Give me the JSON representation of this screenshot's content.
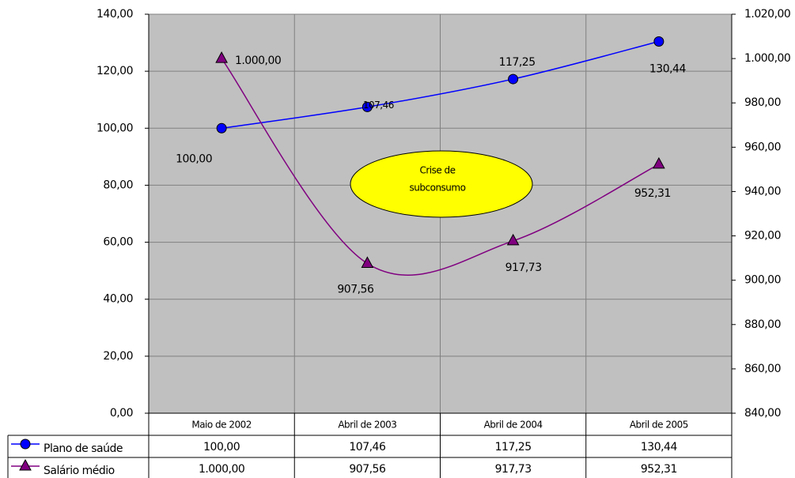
{
  "chart_data": {
    "type": "line",
    "categories": [
      "Maio de 2002",
      "Abril de 2003",
      "Abril de 2004",
      "Abril de 2005"
    ],
    "series": [
      {
        "name": "Plano de saúde",
        "color": "#0000ff",
        "label_color": "#1a1acc",
        "marker": "circle",
        "values": [
          100,
          107.46,
          117.25,
          130.44
        ],
        "value_labels": [
          "100,00",
          "107,46",
          "117,25",
          "130,44"
        ]
      },
      {
        "name": "Salário médio",
        "color": "#800080",
        "label_color": "#ff00ff",
        "marker": "triangle",
        "axis": "y2",
        "values": [
          1000,
          907.56,
          917.73,
          952.31
        ],
        "value_labels": [
          "1.000,00",
          "907,56",
          "917,73",
          "952,31"
        ]
      }
    ],
    "ylim": [
      0,
      140
    ],
    "yticks": [
      {
        "value": 0,
        "label": "0,00"
      },
      {
        "value": 20,
        "label": "20,00"
      },
      {
        "value": 40,
        "label": "40,00"
      },
      {
        "value": 60,
        "label": "60,00"
      },
      {
        "value": 80,
        "label": "80,00"
      },
      {
        "value": 100,
        "label": "100,00"
      },
      {
        "value": 120,
        "label": "120,00"
      },
      {
        "value": 140,
        "label": "140,00"
      }
    ],
    "y2lim": [
      840,
      1020
    ],
    "y2ticks": [
      {
        "value": 840,
        "label": "840,00"
      },
      {
        "value": 860,
        "label": "860,00"
      },
      {
        "value": 880,
        "label": "880,00"
      },
      {
        "value": 900,
        "label": "900,00"
      },
      {
        "value": 920,
        "label": "920,00"
      },
      {
        "value": 940,
        "label": "940,00"
      },
      {
        "value": 960,
        "label": "960,00"
      },
      {
        "value": 980,
        "label": "980,00"
      },
      {
        "value": 1000,
        "label": "1.000,00"
      },
      {
        "value": 1020,
        "label": "1.020,00"
      }
    ],
    "grid": true,
    "annotation": {
      "lines": [
        "Crise de",
        "subconsumo"
      ],
      "color": "#ffff00"
    }
  }
}
